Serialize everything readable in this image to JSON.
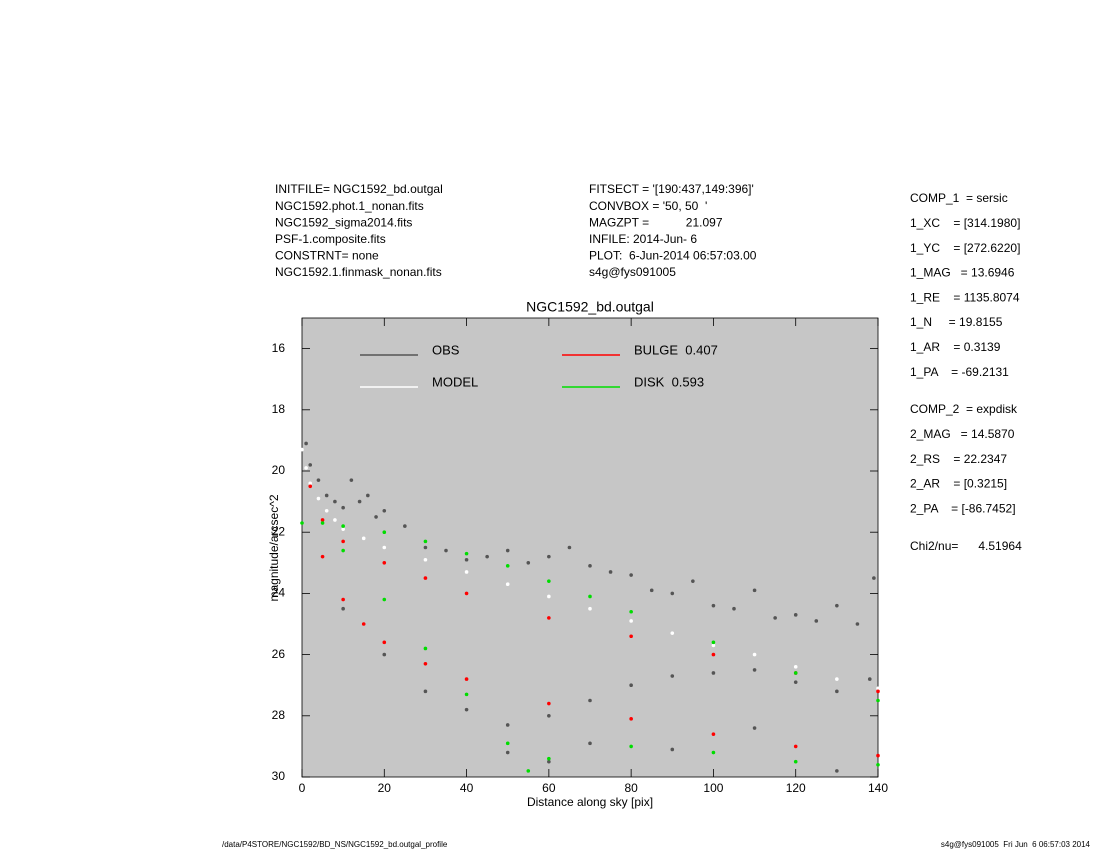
{
  "header": {
    "left": [
      "INITFILE= NGC1592_bd.outgal",
      "NGC1592.phot.1_nonan.fits",
      "NGC1592_sigma2014.fits",
      "PSF-1.composite.fits",
      "CONSTRNT= none",
      "NGC1592.1.finmask_nonan.fits"
    ],
    "middle": [
      "FITSECT = '[190:437,149:396]'",
      "CONVBOX = '50, 50  '",
      "MAGZPT =           21.097",
      "INFILE: 2014-Jun- 6",
      "PLOT:  6-Jun-2014 06:57:03.00",
      "s4g@fys091005"
    ],
    "params1": [
      "COMP_1  = sersic",
      "1_XC    = [314.1980]",
      "1_YC    = [272.6220]",
      "1_MAG   = 13.6946",
      "1_RE    = 1135.8074",
      "1_N     = 19.8155",
      "1_AR    = 0.3139",
      "1_PA    = -69.2131"
    ],
    "params2": [
      "COMP_2  = expdisk",
      "2_MAG   = 14.5870",
      "2_RS    = 22.2347",
      "2_AR    = [0.3215]",
      "2_PA    = [-86.7452]"
    ],
    "chi": "Chi2/nu=      4.51964"
  },
  "footer": {
    "left": "/data/P4STORE/NGC1592/BD_NS/NGC1592_bd.outgal_profile",
    "right": "s4g@fys091005  Fri Jun  6 06:57:03 2014"
  },
  "chart_data": {
    "type": "scatter",
    "title": "NGC1592_bd.outgal",
    "x_label": "Distance along sky [pix]",
    "y_label": "magnitude/arcsec^2",
    "xlim": [
      0,
      140
    ],
    "xticks": [
      0,
      20,
      40,
      60,
      80,
      100,
      120,
      140
    ],
    "ylim": [
      30,
      15
    ],
    "yticks": [
      16,
      18,
      20,
      22,
      24,
      26,
      28,
      30
    ],
    "background": "#c6c6c6",
    "series": [
      {
        "name": "OBS",
        "color": "#555555",
        "x": [
          1,
          2,
          4,
          6,
          8,
          10,
          12,
          14,
          16,
          18,
          20,
          25,
          30,
          35,
          40,
          45,
          50,
          55,
          60,
          65,
          70,
          75,
          80,
          85,
          90,
          95,
          100,
          105,
          110,
          115,
          120,
          125,
          130,
          135,
          139,
          10,
          20,
          30,
          40,
          50,
          60,
          70,
          80,
          90,
          100,
          110,
          120,
          130,
          138,
          50,
          60,
          70,
          90,
          110,
          130
        ],
        "values": [
          19.1,
          19.8,
          20.3,
          20.8,
          21.0,
          21.2,
          20.3,
          21.0,
          20.8,
          21.5,
          21.3,
          21.8,
          22.5,
          22.6,
          22.9,
          22.8,
          22.6,
          23.0,
          22.8,
          22.5,
          23.1,
          23.3,
          23.4,
          23.9,
          24.0,
          23.6,
          24.4,
          24.5,
          23.9,
          24.8,
          24.7,
          24.9,
          24.4,
          25.0,
          23.5,
          24.5,
          26.0,
          27.2,
          27.8,
          28.3,
          28.0,
          27.5,
          27.0,
          26.7,
          26.6,
          26.5,
          26.9,
          27.2,
          26.8,
          29.2,
          29.5,
          28.9,
          29.1,
          28.4,
          29.8
        ]
      },
      {
        "name": "MODEL",
        "color": "#ffffff",
        "x": [
          0,
          1,
          2,
          4,
          6,
          8,
          10,
          15,
          20,
          30,
          40,
          50,
          60,
          70,
          80,
          90,
          100,
          110,
          120,
          130,
          140
        ],
        "values": [
          19.3,
          19.9,
          20.4,
          20.9,
          21.3,
          21.6,
          21.9,
          22.2,
          22.5,
          22.9,
          23.3,
          23.7,
          24.1,
          24.5,
          24.9,
          25.3,
          25.7,
          26.0,
          26.4,
          26.8,
          27.1
        ]
      },
      {
        "name": "BULGE  0.407",
        "color": "#ff0000",
        "x": [
          2,
          5,
          10,
          20,
          30,
          40,
          60,
          80,
          100,
          120,
          140,
          5,
          10,
          15,
          20,
          30,
          40,
          60,
          80,
          100,
          120,
          140
        ],
        "values": [
          20.5,
          21.6,
          22.3,
          23.0,
          23.5,
          24.0,
          24.8,
          25.4,
          26.0,
          26.6,
          27.2,
          22.8,
          24.2,
          25.0,
          25.6,
          26.3,
          26.8,
          27.6,
          28.1,
          28.6,
          29.0,
          29.3
        ]
      },
      {
        "name": "DISK  0.593",
        "color": "#00dd00",
        "x": [
          0,
          5,
          10,
          20,
          30,
          40,
          50,
          60,
          70,
          80,
          100,
          120,
          140,
          10,
          20,
          30,
          40,
          50,
          55,
          60,
          80,
          100,
          120,
          140
        ],
        "values": [
          21.7,
          21.7,
          21.8,
          22.0,
          22.3,
          22.7,
          23.1,
          23.6,
          24.1,
          24.6,
          25.6,
          26.6,
          27.5,
          22.6,
          24.2,
          25.8,
          27.3,
          28.9,
          29.8,
          29.4,
          29.0,
          29.2,
          29.5,
          29.6
        ]
      }
    ]
  }
}
